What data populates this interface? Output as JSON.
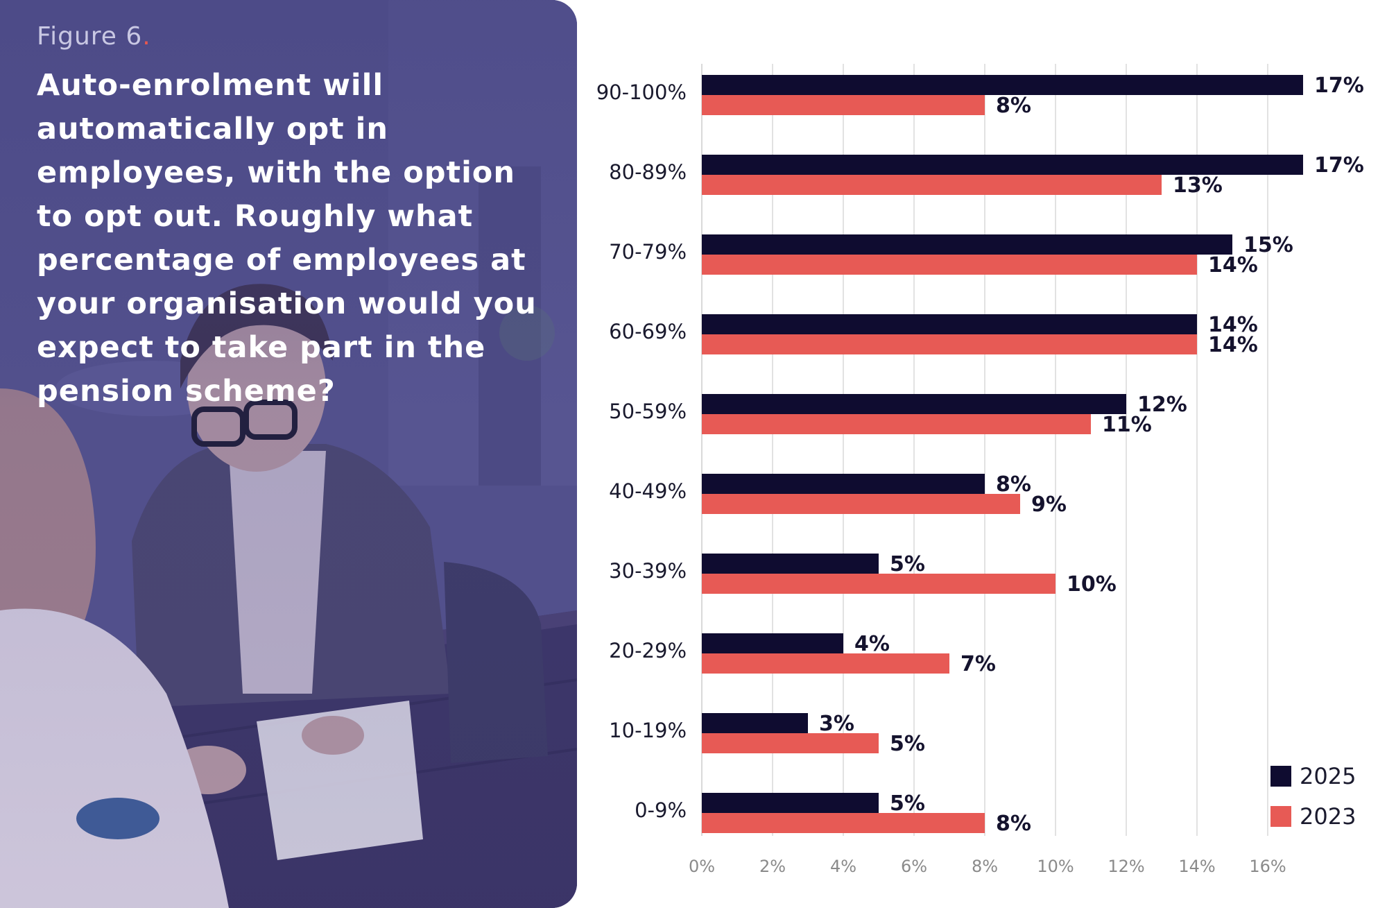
{
  "figure": {
    "label": "Figure 6",
    "dot": "."
  },
  "question": "Auto-enrolment will automatically opt in employees, with the option to opt out. Roughly what percentage of employees at your organisation would you expect to take part in the pension scheme?",
  "colors": {
    "series_2025": "#0f0c30",
    "series_2023": "#e75a55",
    "grid": "#d9d9d9",
    "panel": "#4e4c8a"
  },
  "chart_data": {
    "type": "bar",
    "orientation": "horizontal",
    "categories": [
      "90-100%",
      "80-89%",
      "70-79%",
      "60-69%",
      "50-59%",
      "40-49%",
      "30-39%",
      "20-29%",
      "10-19%",
      "0-9%"
    ],
    "series": [
      {
        "name": "2025",
        "values": [
          17,
          17,
          15,
          14,
          12,
          8,
          5,
          4,
          3,
          5
        ],
        "labels": [
          "17%",
          "17%",
          "15%",
          "14%",
          "12%",
          "8%",
          "5%",
          "4%",
          "3%",
          "5%"
        ]
      },
      {
        "name": "2023",
        "values": [
          8,
          13,
          14,
          14,
          11,
          9,
          10,
          7,
          5,
          8
        ],
        "labels": [
          "8%",
          "13%",
          "14%",
          "14%",
          "11%",
          "9%",
          "10%",
          "7%",
          "5%",
          "8%"
        ]
      }
    ],
    "xlim": [
      0,
      18
    ],
    "xticks": [
      "0%",
      "2%",
      "4%",
      "6%",
      "8%",
      "10%",
      "12%",
      "14%",
      "16%"
    ],
    "grid": true,
    "legend_position": "bottom-right"
  }
}
